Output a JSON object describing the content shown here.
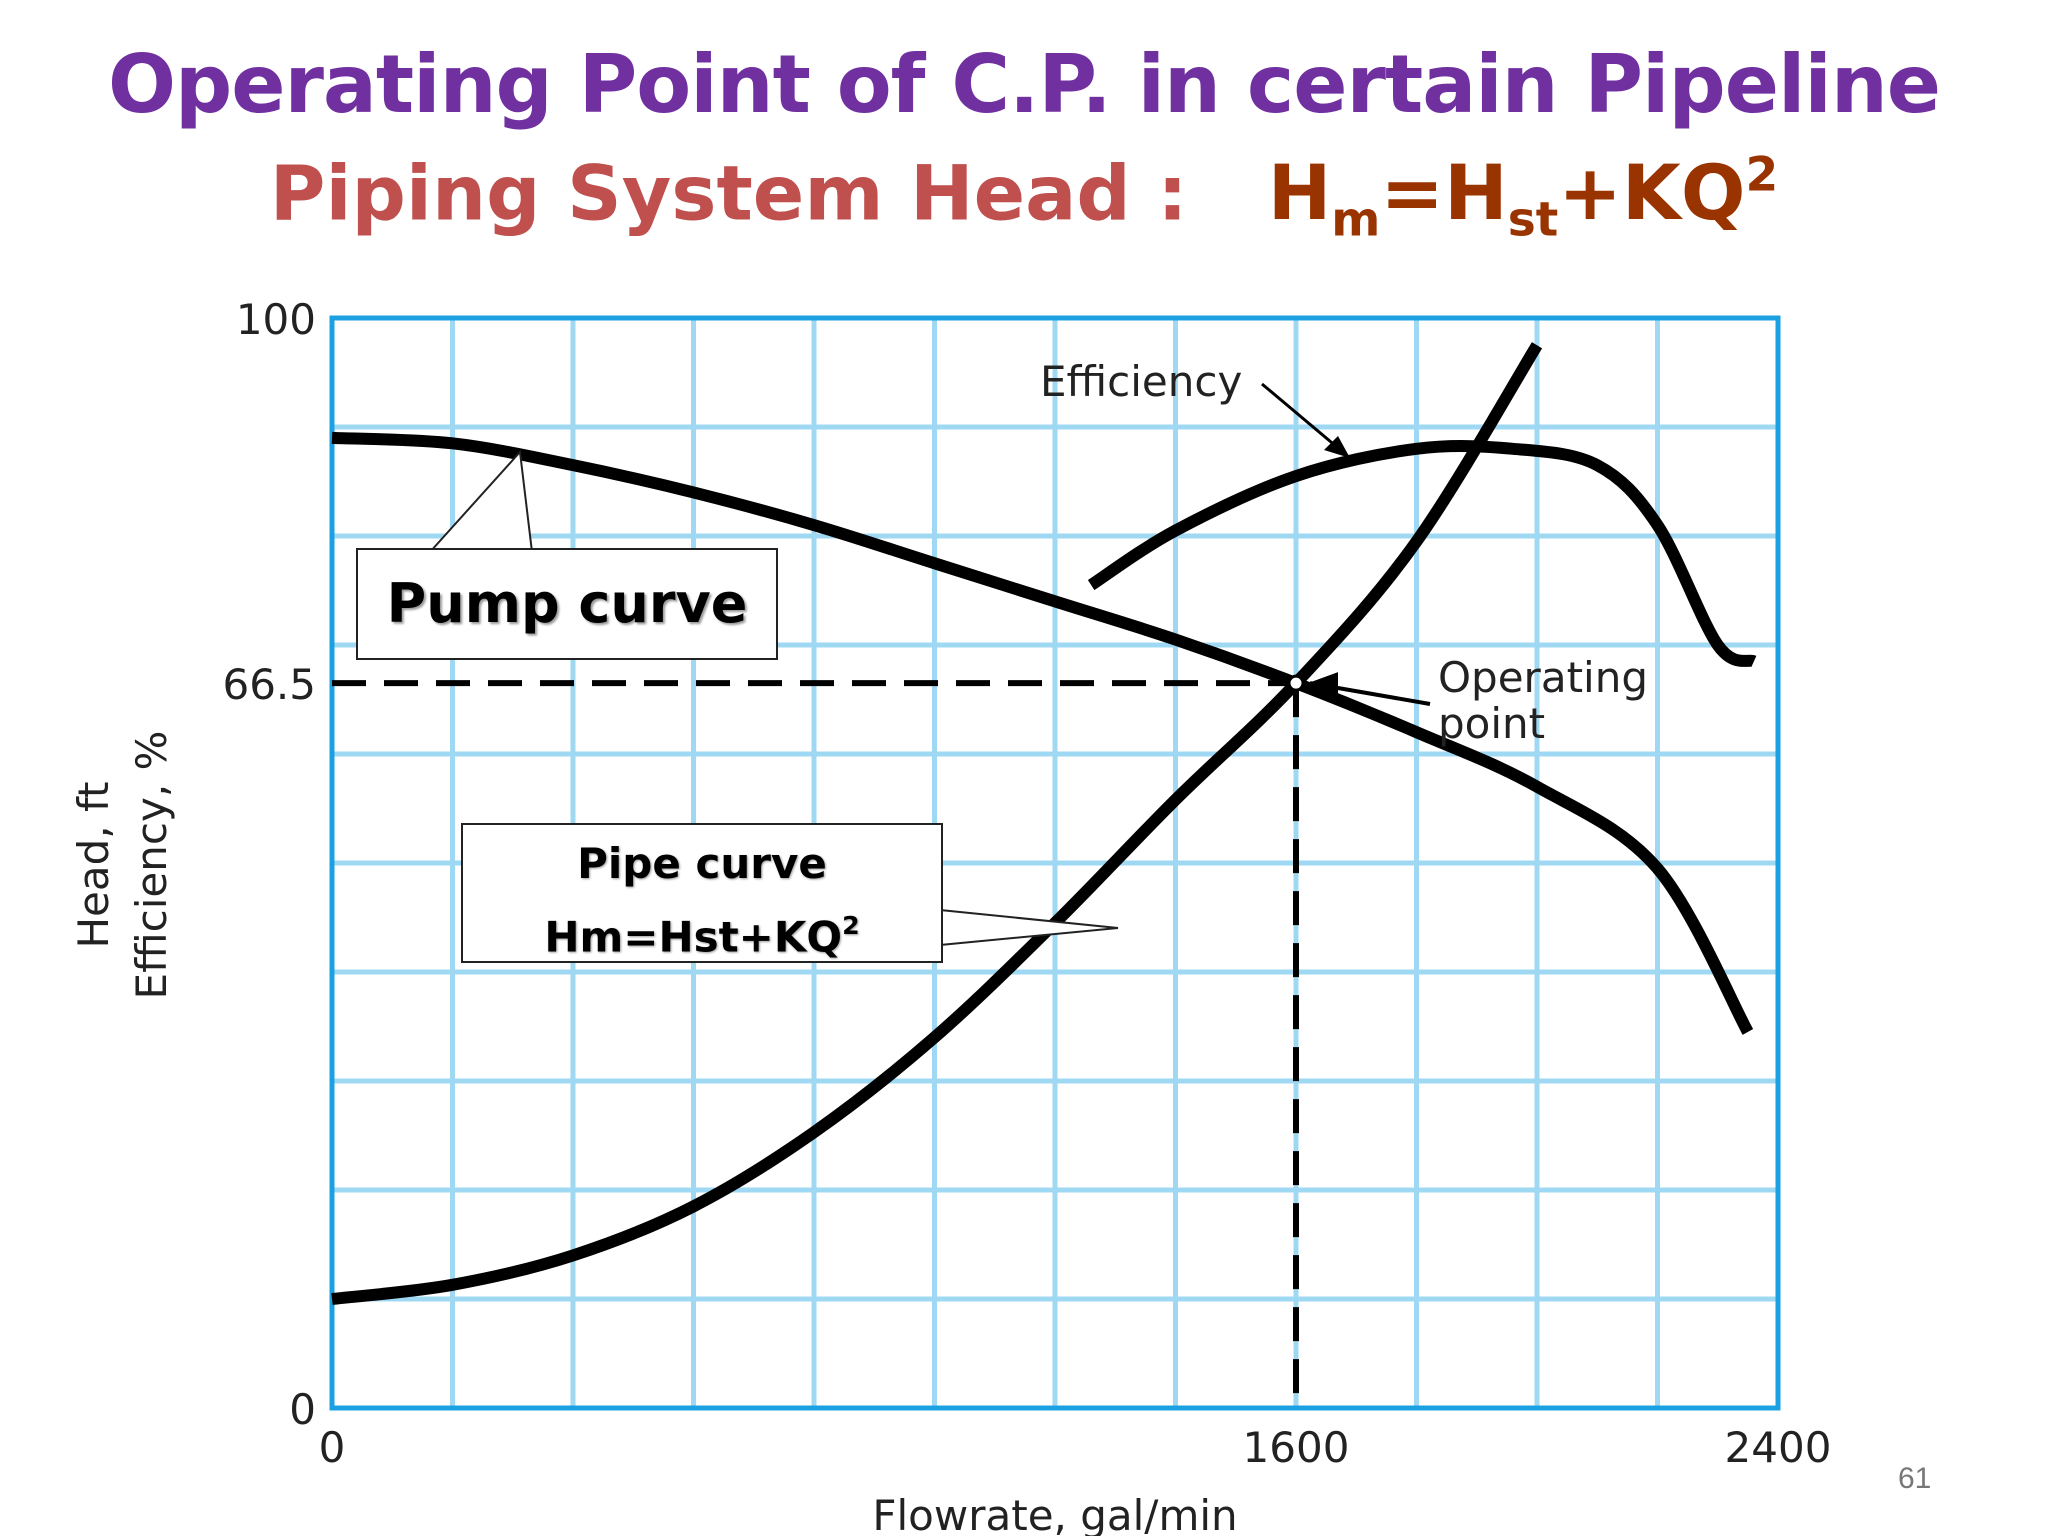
{
  "header": {
    "title": "Operating Point of C.P. in certain Pipeline",
    "subtitle_label": "Piping System Head :",
    "equation": {
      "H": "H",
      "m": "m",
      "eq": "=H",
      "st": "st",
      "plus": "+KQ",
      "exp": "2"
    }
  },
  "page_number": "61",
  "callouts": {
    "pump": "Pump curve",
    "pipe_line1": "Pipe curve",
    "pipe_line2": "Hm=Hst+KQ",
    "pipe_exp": "2"
  },
  "chart_data": {
    "type": "line",
    "xlabel": "Flowrate, gal/min",
    "ylabel_lines": [
      "Head, ft",
      "Efficiency, %"
    ],
    "xlim": [
      0,
      2400
    ],
    "ylim": [
      0,
      100
    ],
    "x_ticks": [
      0,
      1600,
      2400
    ],
    "y_ticks": [
      0,
      66.5,
      100
    ],
    "grid": true,
    "grid_color": "#9FD8F2",
    "frame_color": "#1BA1E2",
    "series": [
      {
        "name": "Pump curve",
        "points": [
          [
            0,
            89
          ],
          [
            200,
            88.5
          ],
          [
            400,
            86.5
          ],
          [
            600,
            84
          ],
          [
            800,
            81
          ],
          [
            1000,
            77.5
          ],
          [
            1200,
            74
          ],
          [
            1400,
            70.5
          ],
          [
            1600,
            66.5
          ],
          [
            1800,
            62
          ],
          [
            2000,
            57
          ],
          [
            2200,
            49.5
          ],
          [
            2350,
            34.5
          ]
        ]
      },
      {
        "name": "Pipe curve",
        "points": [
          [
            0,
            10
          ],
          [
            200,
            11.3
          ],
          [
            400,
            14
          ],
          [
            600,
            18.5
          ],
          [
            800,
            25.3
          ],
          [
            1000,
            34
          ],
          [
            1200,
            44.5
          ],
          [
            1400,
            55.8
          ],
          [
            1600,
            66.5
          ],
          [
            1800,
            79.5
          ],
          [
            2000,
            97.5
          ]
        ]
      },
      {
        "name": "Efficiency",
        "points": [
          [
            1260,
            75.5
          ],
          [
            1400,
            80.5
          ],
          [
            1600,
            85.5
          ],
          [
            1800,
            88
          ],
          [
            1960,
            88
          ],
          [
            2100,
            86.5
          ],
          [
            2200,
            81
          ],
          [
            2300,
            70
          ],
          [
            2360,
            68.5
          ]
        ]
      }
    ],
    "operating_point": {
      "x": 1600,
      "y": 66.5
    },
    "annotations": [
      "Efficiency",
      "Operating",
      "point"
    ]
  }
}
